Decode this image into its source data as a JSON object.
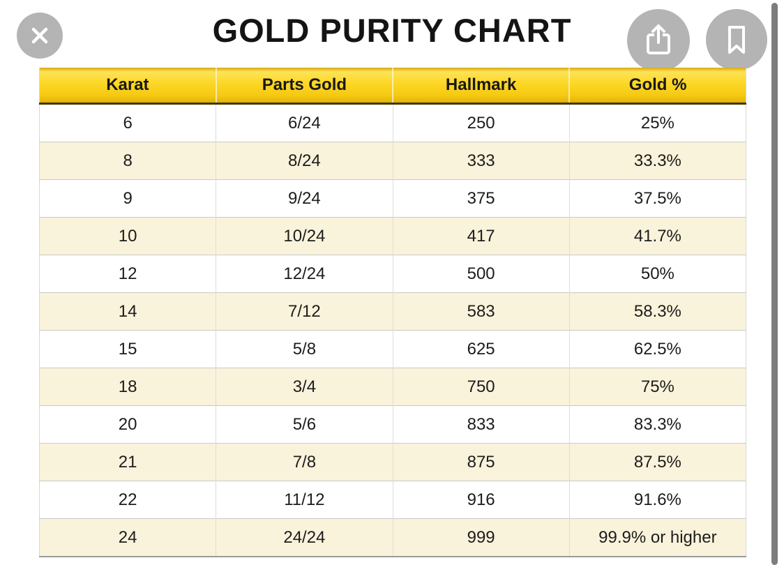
{
  "title": "GOLD PURITY CHART",
  "viewer_controls": {
    "close_icon": "x-cross",
    "share_icon": "box-with-up-arrow",
    "bookmark_icon": "bookmark-ribbon"
  },
  "colors": {
    "header_yellow": "#fdd725",
    "header_yellow_dark": "#e3b206",
    "header_bottom_border": "#3d380f",
    "row_alt_cream": "#faf3db",
    "row_white": "#ffffff",
    "control_circle_gray": "#b4b4b4",
    "scrollbar_gray": "#7d7d7d",
    "title_black": "#141414"
  },
  "chart_data": {
    "type": "table",
    "title": "GOLD PURITY CHART",
    "columns": [
      "Karat",
      "Parts Gold",
      "Hallmark",
      "Gold %"
    ],
    "rows": [
      [
        "6",
        "6/24",
        "250",
        "25%"
      ],
      [
        "8",
        "8/24",
        "333",
        "33.3%"
      ],
      [
        "9",
        "9/24",
        "375",
        "37.5%"
      ],
      [
        "10",
        "10/24",
        "417",
        "41.7%"
      ],
      [
        "12",
        "12/24",
        "500",
        "50%"
      ],
      [
        "14",
        "7/12",
        "583",
        "58.3%"
      ],
      [
        "15",
        "5/8",
        "625",
        "62.5%"
      ],
      [
        "18",
        "3/4",
        "750",
        "75%"
      ],
      [
        "20",
        "5/6",
        "833",
        "83.3%"
      ],
      [
        "21",
        "7/8",
        "875",
        "87.5%"
      ],
      [
        "22",
        "11/12",
        "916",
        "91.6%"
      ],
      [
        "24",
        "24/24",
        "999",
        "99.9% or higher"
      ]
    ]
  }
}
